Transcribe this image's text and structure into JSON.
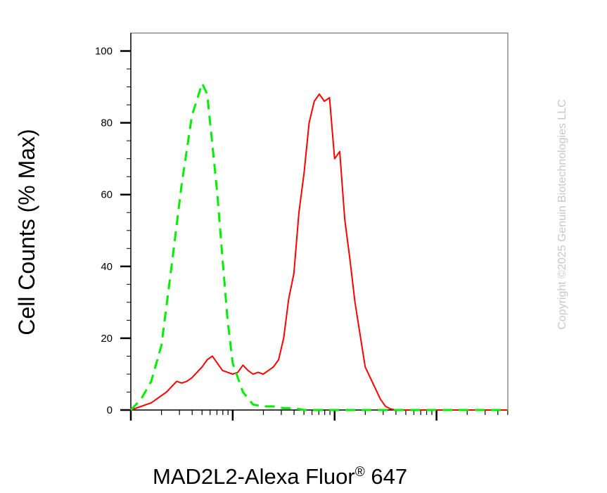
{
  "chart_data": {
    "type": "line",
    "title": "",
    "ylabel": "Cell Counts (% Max)",
    "xlabel": "MAD2L2-Alexa Fluor",
    "xlabel_superscript": "®",
    "xlabel_suffix": " 647",
    "ylim": [
      0,
      105
    ],
    "yticks": [
      "0",
      "20",
      "40",
      "60",
      "80",
      "100"
    ],
    "xscale": "log",
    "xlim": [
      0,
      3.7
    ],
    "grid": false,
    "legend": "none",
    "series": [
      {
        "color": "#ff0000",
        "style": "solid",
        "x": [
          0.0,
          0.2,
          0.35,
          0.45,
          0.5,
          0.55,
          0.6,
          0.7,
          0.75,
          0.8,
          0.85,
          0.9,
          0.95,
          1.0,
          1.05,
          1.1,
          1.15,
          1.2,
          1.25,
          1.3,
          1.35,
          1.4,
          1.45,
          1.5,
          1.55,
          1.6,
          1.65,
          1.7,
          1.75,
          1.8,
          1.85,
          1.9,
          1.95,
          2.0,
          2.05,
          2.1,
          2.15,
          2.2,
          2.3,
          2.4,
          2.45,
          2.5,
          2.55,
          2.6,
          2.65,
          2.7,
          2.75,
          2.8,
          2.85,
          2.9,
          2.95,
          3.0,
          3.05,
          3.1,
          3.2,
          3.3,
          3.45,
          3.6,
          3.7
        ],
        "y": [
          0,
          2,
          5,
          8,
          7.5,
          8,
          9,
          12,
          14,
          15,
          13,
          11,
          10.5,
          10,
          10.5,
          12.5,
          11,
          10,
          10.5,
          10,
          11,
          12,
          14,
          20,
          31,
          38,
          55,
          66,
          80,
          86,
          88,
          86,
          87,
          70,
          72,
          53,
          42,
          30,
          12,
          6,
          3,
          1,
          0.3,
          0,
          0,
          0,
          0,
          0,
          0,
          0,
          0,
          0,
          0,
          0,
          0,
          0,
          0,
          0,
          0
        ]
      },
      {
        "color": "#00ee00",
        "style": "dashed",
        "x": [
          0.0,
          0.1,
          0.2,
          0.3,
          0.4,
          0.5,
          0.6,
          0.7,
          0.75,
          0.8,
          0.85,
          0.9,
          0.95,
          1.0,
          1.1,
          1.2,
          1.3,
          1.4,
          1.5,
          1.6,
          1.7,
          1.8,
          1.9,
          2.0,
          2.2,
          2.4,
          2.6,
          2.8,
          3.0,
          3.2,
          3.4,
          3.6,
          3.7
        ],
        "y": [
          0,
          3,
          8,
          18,
          40,
          63,
          82,
          91,
          88,
          74,
          60,
          42,
          25,
          13,
          5,
          1.5,
          1,
          1,
          0.5,
          0.5,
          0,
          0,
          0,
          0,
          0,
          0,
          0,
          0,
          0,
          0,
          0,
          0,
          0
        ]
      }
    ]
  },
  "copyright": "Copyright ©2025 Genuin Biotechnologies LLC"
}
